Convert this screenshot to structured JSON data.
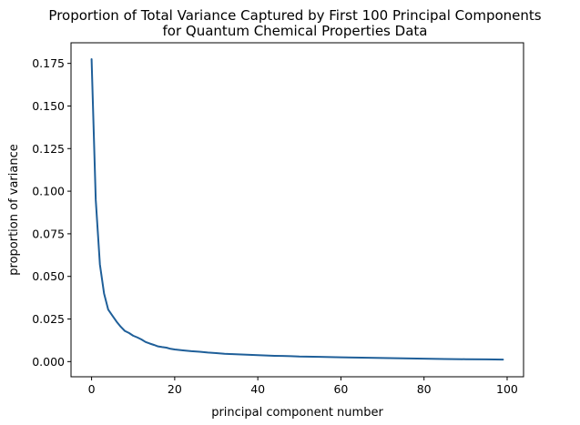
{
  "chart_data": {
    "type": "line",
    "title_line1": "Proportion of Total Variance Captured by First 100 Principal Components",
    "title_line2": "for Quantum Chemical Properties Data",
    "xlabel": "principal component number",
    "ylabel": "proportion of variance",
    "xlim": [
      -4.95,
      103.95
    ],
    "ylim": [
      -0.0089,
      0.1871
    ],
    "xticks": [
      0,
      20,
      40,
      60,
      80,
      100
    ],
    "xtick_labels": [
      "0",
      "20",
      "40",
      "60",
      "80",
      "100"
    ],
    "yticks": [
      0.0,
      0.025,
      0.05,
      0.075,
      0.1,
      0.125,
      0.15,
      0.175
    ],
    "ytick_labels": [
      "0.000",
      "0.025",
      "0.050",
      "0.075",
      "0.100",
      "0.125",
      "0.150",
      "0.175"
    ],
    "grid": false,
    "line_color": "#1f5f99",
    "series": [
      {
        "x": [
          0,
          1,
          2,
          3,
          4,
          5,
          6,
          7,
          8,
          9,
          10,
          11,
          12,
          13,
          14,
          15,
          16,
          17,
          18,
          19,
          20,
          22,
          24,
          26,
          28,
          30,
          32,
          34,
          36,
          38,
          40,
          42,
          44,
          46,
          48,
          50,
          55,
          60,
          65,
          70,
          75,
          80,
          85,
          90,
          95,
          99
        ],
        "values": [
          0.1775,
          0.095,
          0.057,
          0.04,
          0.0305,
          0.027,
          0.0235,
          0.0205,
          0.018,
          0.0168,
          0.0152,
          0.0142,
          0.013,
          0.0115,
          0.0106,
          0.0098,
          0.0089,
          0.0085,
          0.0082,
          0.0075,
          0.0071,
          0.0066,
          0.0061,
          0.0058,
          0.0053,
          0.005,
          0.0046,
          0.0044,
          0.0042,
          0.004,
          0.0038,
          0.0036,
          0.0034,
          0.0033,
          0.0032,
          0.003,
          0.0028,
          0.0025,
          0.0023,
          0.0021,
          0.0019,
          0.0017,
          0.0015,
          0.0014,
          0.0013,
          0.0012
        ]
      }
    ]
  }
}
